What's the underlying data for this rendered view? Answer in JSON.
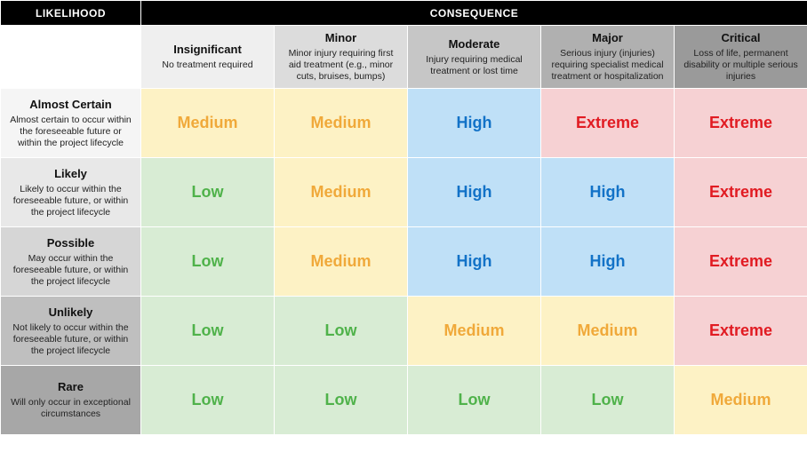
{
  "header": {
    "likelihood": "LIKELIHOOD",
    "consequence": "CONSEQUENCE"
  },
  "consequence_header_bgs": [
    "#ffffff",
    "#efefef",
    "#dcdcdc",
    "#c6c6c6",
    "#b0b0b0",
    "#9a9a9a"
  ],
  "likelihood_header_bgs": [
    "#f5f5f5",
    "#e8e8e8",
    "#d6d6d6",
    "#bfbfbf",
    "#a7a7a7"
  ],
  "consequences": [
    {
      "title": "Insignificant",
      "desc": "No treatment required"
    },
    {
      "title": "Minor",
      "desc": "Minor injury requiring first aid treatment (e.g., minor cuts, bruises, bumps)"
    },
    {
      "title": "Moderate",
      "desc": "Injury requiring medical treatment or lost time"
    },
    {
      "title": "Major",
      "desc": "Serious injury (injuries) requiring specialist medical treatment or hospitalization"
    },
    {
      "title": "Critical",
      "desc": "Loss of life, permanent disability or multiple serious injuries"
    }
  ],
  "likelihoods": [
    {
      "title": "Almost Certain",
      "desc": "Almost certain to occur within the foreseeable future or within the project lifecycle"
    },
    {
      "title": "Likely",
      "desc": "Likely to occur within the foreseeable future, or within the project lifecycle"
    },
    {
      "title": "Possible",
      "desc": "May occur within the foreseeable future, or within the project lifecycle"
    },
    {
      "title": "Unlikely",
      "desc": "Not likely to occur within the foreseeable future, or within the project lifecycle"
    },
    {
      "title": "Rare",
      "desc": "Will only occur in exceptional circumstances"
    }
  ],
  "levels": {
    "Low": {
      "bg": "#d8ecd4",
      "fg": "#4fb24a"
    },
    "Medium": {
      "bg": "#fdf2c5",
      "fg": "#f0a93a"
    },
    "High": {
      "bg": "#bfe0f7",
      "fg": "#1272c7"
    },
    "Extreme": {
      "bg": "#f6d1d3",
      "fg": "#e11b22"
    }
  },
  "grid": [
    [
      "Medium",
      "Medium",
      "High",
      "Extreme",
      "Extreme"
    ],
    [
      "Low",
      "Medium",
      "High",
      "High",
      "Extreme"
    ],
    [
      "Low",
      "Medium",
      "High",
      "High",
      "Extreme"
    ],
    [
      "Low",
      "Low",
      "Medium",
      "Medium",
      "Extreme"
    ],
    [
      "Low",
      "Low",
      "Low",
      "Low",
      "Medium"
    ]
  ],
  "fonts": {
    "header_pt": 12,
    "col_title_pt": 13,
    "col_desc_pt": 10.5,
    "risk_pt": 18
  }
}
